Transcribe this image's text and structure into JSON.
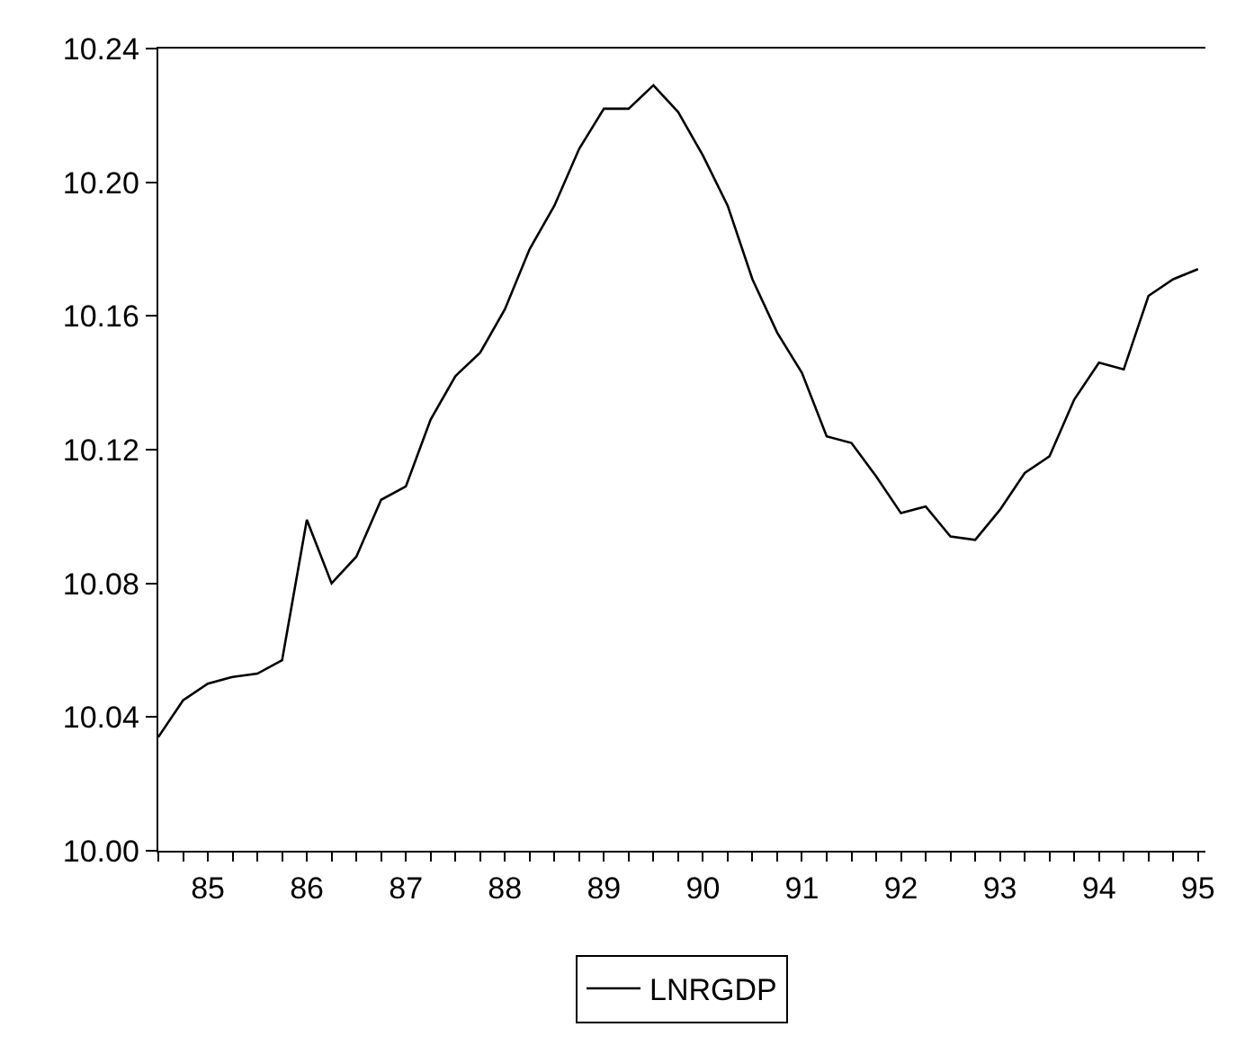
{
  "chart_data": {
    "type": "line",
    "categories": [
      null,
      null,
      "85",
      null,
      null,
      null,
      "86",
      null,
      null,
      null,
      "87",
      null,
      null,
      null,
      "88",
      null,
      null,
      null,
      "89",
      null,
      null,
      null,
      "90",
      null,
      null,
      null,
      "91",
      null,
      null,
      null,
      "92",
      null,
      null,
      null,
      "93",
      null,
      null,
      null,
      "94",
      null,
      null,
      null,
      "95"
    ],
    "series": [
      {
        "name": "LNRGDP",
        "color": "#000000",
        "values": [
          10.034,
          10.045,
          10.05,
          10.052,
          10.053,
          10.057,
          10.099,
          10.08,
          10.088,
          10.105,
          10.109,
          10.129,
          10.142,
          10.149,
          10.162,
          10.18,
          10.193,
          10.21,
          10.222,
          10.222,
          10.229,
          10.221,
          10.208,
          10.193,
          10.171,
          10.155,
          10.143,
          10.124,
          10.122,
          10.112,
          10.101,
          10.103,
          10.094,
          10.093,
          10.102,
          10.113,
          10.118,
          10.135,
          10.146,
          10.144,
          10.166,
          10.171,
          10.174
        ]
      }
    ],
    "ylim": [
      10.0,
      10.24
    ],
    "yticks": [
      {
        "value": 10.0,
        "label": "10.00"
      },
      {
        "value": 10.04,
        "label": "10.04"
      },
      {
        "value": 10.08,
        "label": "10.08"
      },
      {
        "value": 10.12,
        "label": "10.12"
      },
      {
        "value": 10.16,
        "label": "10.16"
      },
      {
        "value": 10.2,
        "label": "10.20"
      },
      {
        "value": 10.24,
        "label": "10.24"
      }
    ],
    "legend": "bottom",
    "marker": "none",
    "line_style": "solid"
  }
}
